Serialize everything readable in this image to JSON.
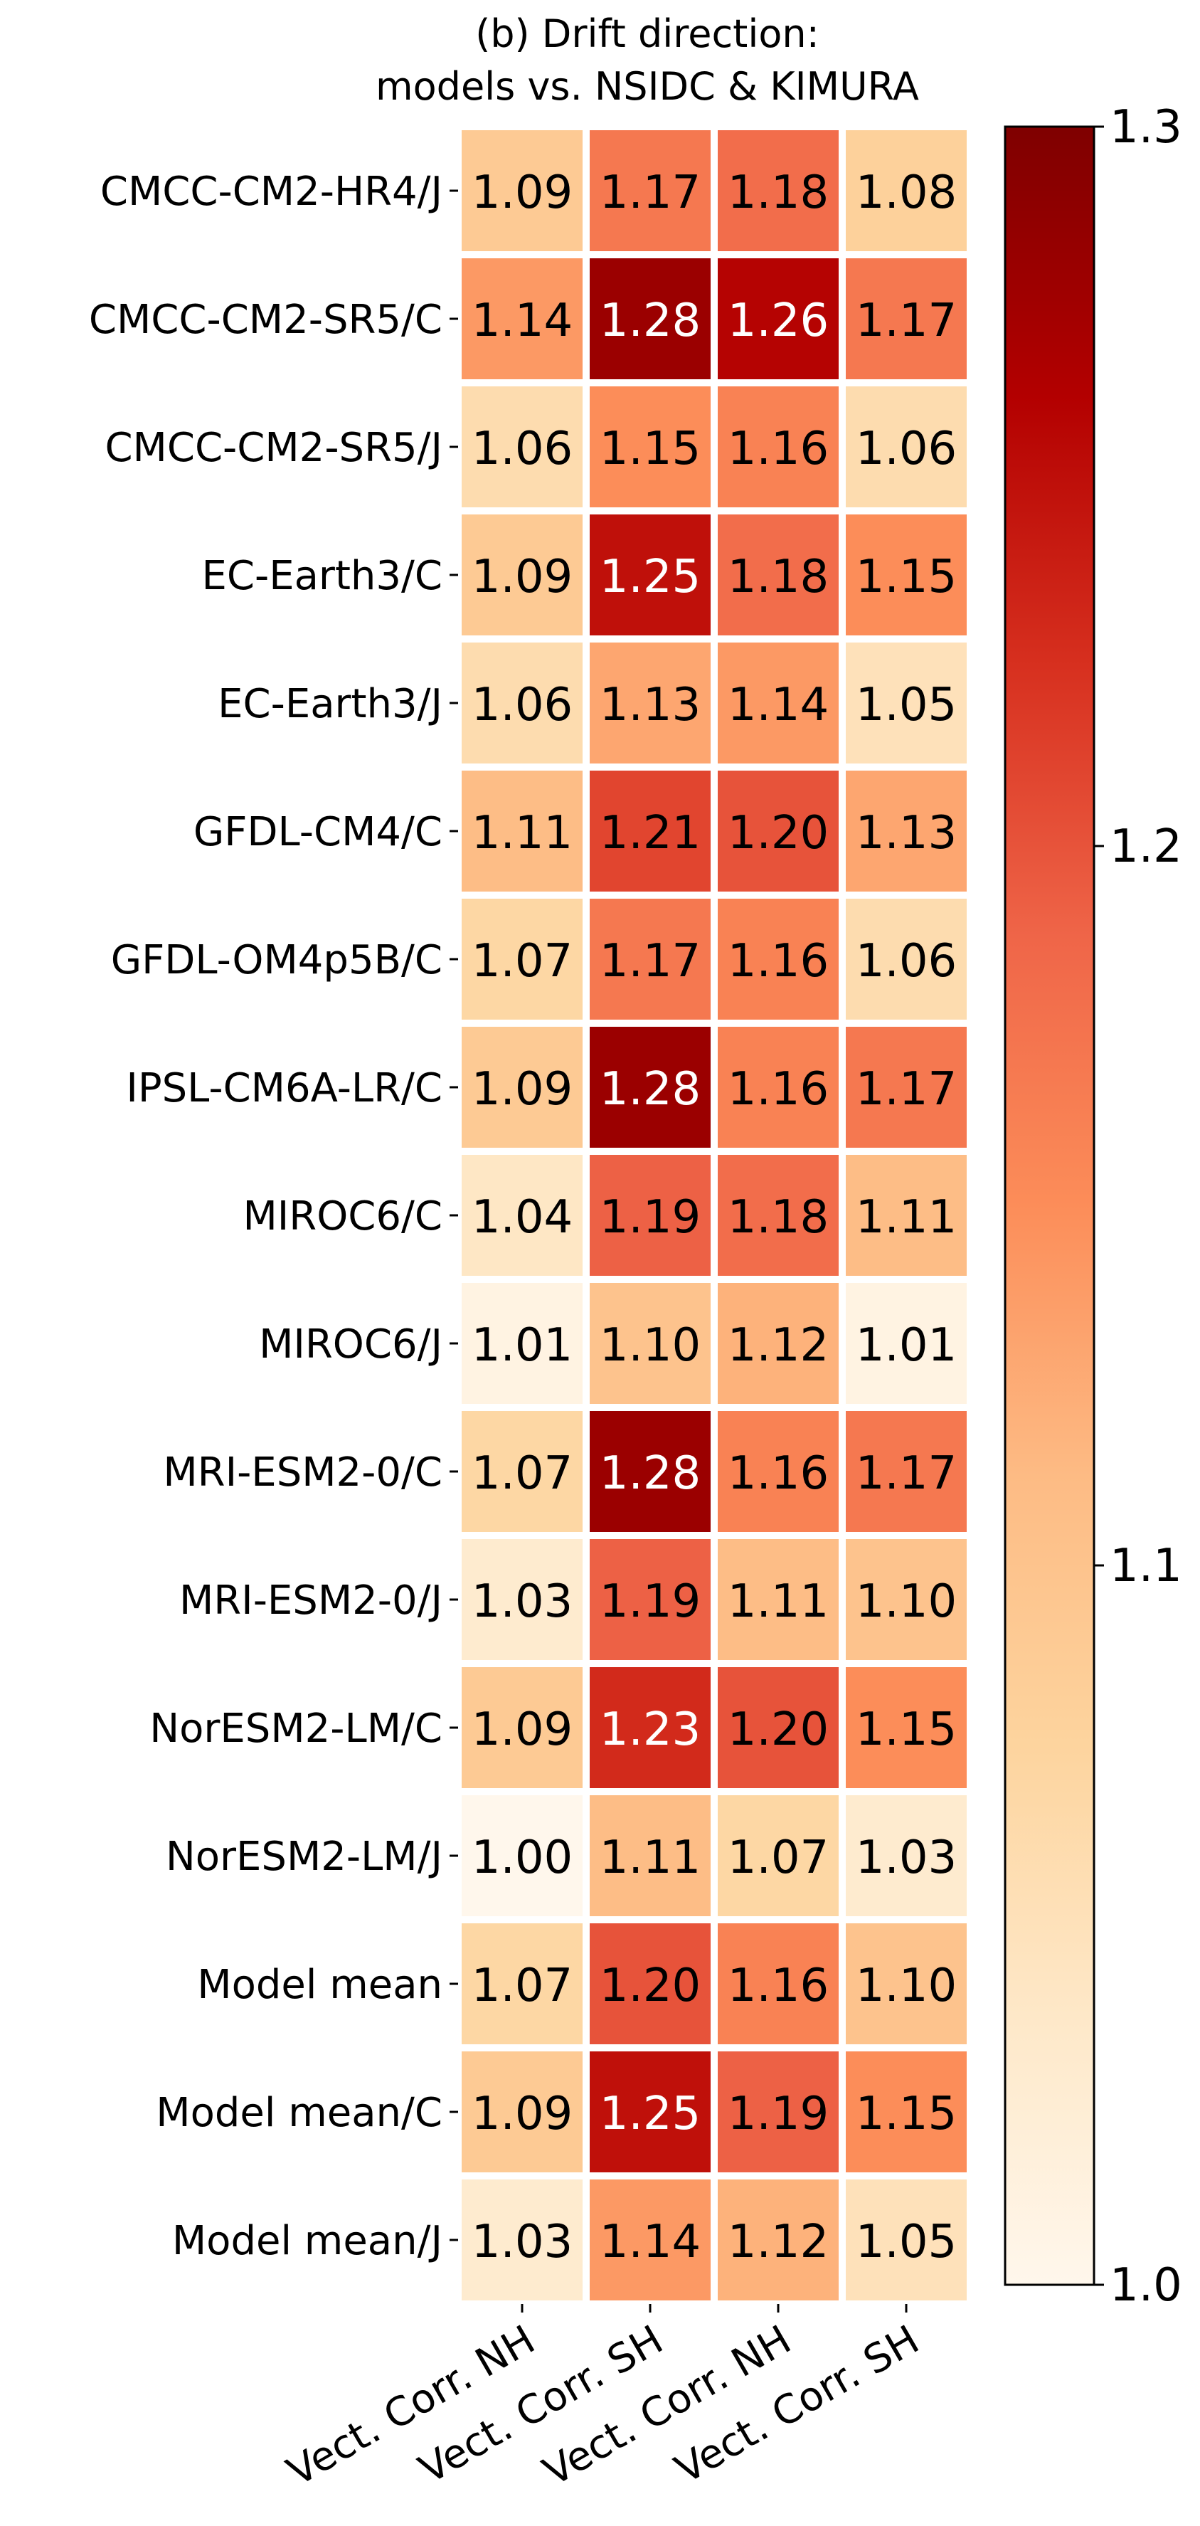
{
  "chart_data": {
    "type": "heatmap",
    "title": "(b) Drift direction:",
    "subtitle": "models vs. NSIDC & KIMURA",
    "rows": [
      "CMCC-CM2-HR4/J",
      "CMCC-CM2-SR5/C",
      "CMCC-CM2-SR5/J",
      "EC-Earth3/C",
      "EC-Earth3/J",
      "GFDL-CM4/C",
      "GFDL-OM4p5B/C",
      "IPSL-CM6A-LR/C",
      "MIROC6/C",
      "MIROC6/J",
      "MRI-ESM2-0/C",
      "MRI-ESM2-0/J",
      "NorESM2-LM/C",
      "NorESM2-LM/J",
      "Model mean",
      "Model mean/C",
      "Model mean/J"
    ],
    "columns": [
      "Vect. Corr. NH",
      "Vect. Corr. SH",
      "Vect. Corr. NH",
      "Vect. Corr. SH"
    ],
    "values": [
      [
        1.09,
        1.17,
        1.18,
        1.08
      ],
      [
        1.14,
        1.28,
        1.26,
        1.17
      ],
      [
        1.06,
        1.15,
        1.16,
        1.06
      ],
      [
        1.09,
        1.25,
        1.18,
        1.15
      ],
      [
        1.06,
        1.13,
        1.14,
        1.05
      ],
      [
        1.11,
        1.21,
        1.2,
        1.13
      ],
      [
        1.07,
        1.17,
        1.16,
        1.06
      ],
      [
        1.09,
        1.28,
        1.16,
        1.17
      ],
      [
        1.04,
        1.19,
        1.18,
        1.11
      ],
      [
        1.01,
        1.1,
        1.12,
        1.01
      ],
      [
        1.07,
        1.28,
        1.16,
        1.17
      ],
      [
        1.03,
        1.19,
        1.11,
        1.1
      ],
      [
        1.09,
        1.23,
        1.2,
        1.15
      ],
      [
        1.0,
        1.11,
        1.07,
        1.03
      ],
      [
        1.07,
        1.2,
        1.16,
        1.1
      ],
      [
        1.09,
        1.25,
        1.19,
        1.15
      ],
      [
        1.03,
        1.14,
        1.12,
        1.05
      ]
    ],
    "colorbar": {
      "min": 1.0,
      "max": 1.3,
      "ticks": [
        "1.0",
        "1.1",
        "1.2",
        "1.3"
      ],
      "colormap": "OrRd",
      "stops": [
        "#fff7ec",
        "#fee8c8",
        "#fdd49e",
        "#fdbb84",
        "#fc8d59",
        "#ef6548",
        "#d7301f",
        "#b30000",
        "#7f0000"
      ]
    }
  }
}
